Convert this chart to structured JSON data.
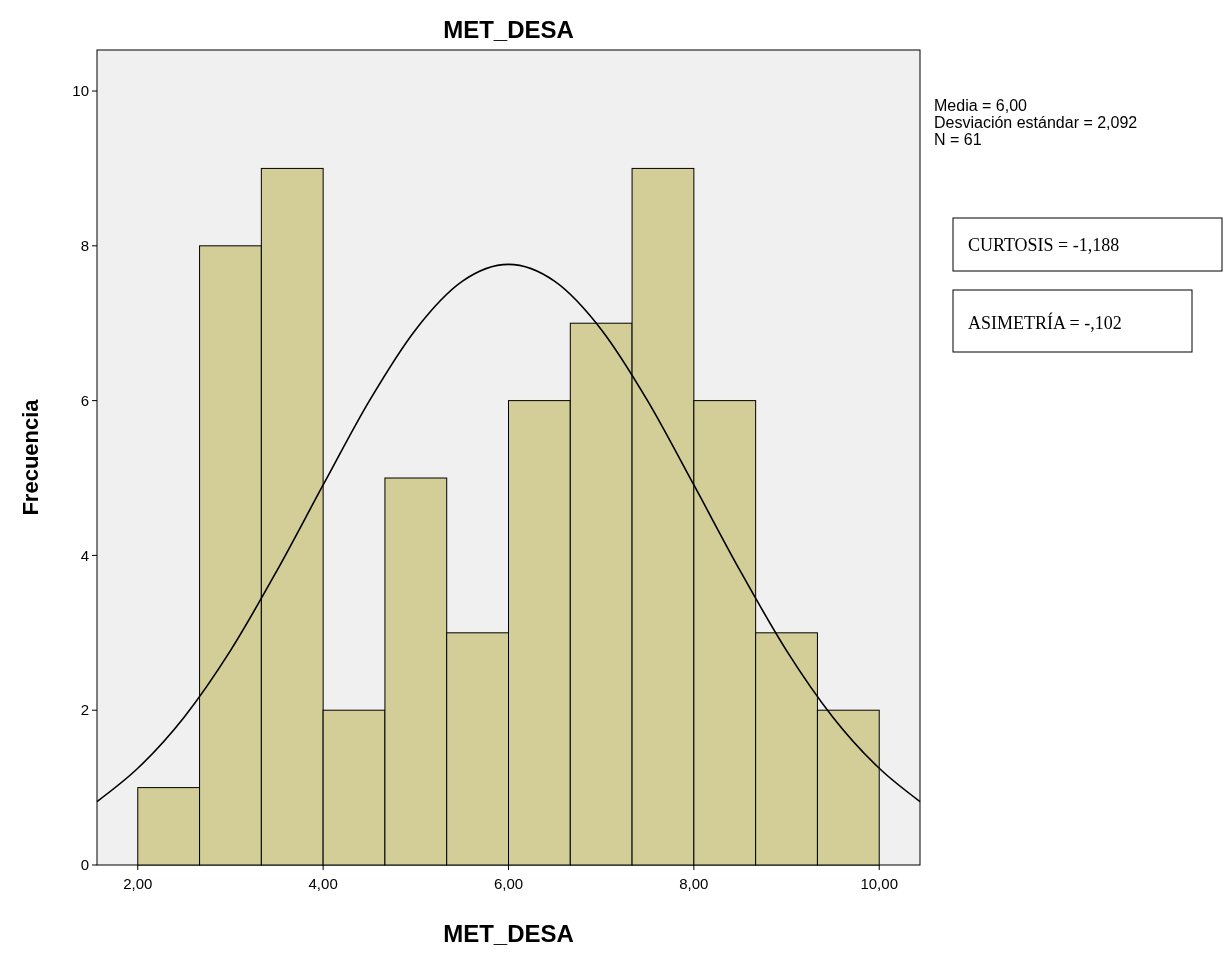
{
  "chart_data": {
    "type": "histogram",
    "title": "MET_DESA",
    "xlabel": "MET_DESA",
    "ylabel": "Frecuencia",
    "bins": [
      2,
      2.6667,
      3.3333,
      4,
      4.6667,
      5.3333,
      6,
      6.6667,
      7.3333,
      8,
      8.6667,
      9.3333,
      10
    ],
    "values": [
      1,
      8,
      9,
      2,
      5,
      3,
      6,
      7,
      9,
      6,
      3,
      2
    ],
    "color": "#d3ce98",
    "series": [
      {
        "type": "line",
        "color": "#000000",
        "x": [
          1.56,
          2,
          2.5,
          3,
          3.5,
          4,
          4.5,
          5,
          5.5,
          6,
          6.5,
          7,
          7.5,
          8,
          8.5,
          9,
          9.5,
          10,
          10.44
        ],
        "values": [
          0.82,
          1.25,
          1.91,
          2.77,
          3.8,
          4.91,
          6.0,
          6.92,
          7.54,
          7.76,
          7.54,
          6.92,
          6.0,
          4.91,
          3.8,
          2.77,
          1.91,
          1.25,
          0.82
        ]
      }
    ],
    "xlim": [
      1.56,
      10.44
    ],
    "ylim": [
      0,
      10.53
    ],
    "xticks": [
      {
        "value": 2,
        "label": "2,00"
      },
      {
        "value": 4,
        "label": "4,00"
      },
      {
        "value": 6,
        "label": "6,00"
      },
      {
        "value": 8,
        "label": "8,00"
      },
      {
        "value": 10,
        "label": "10,00"
      }
    ],
    "yticks": [
      0,
      2,
      4,
      6,
      8,
      10
    ],
    "grid": false,
    "annotations": [
      "Media = 6,00",
      "Desviación estándar = 2,092",
      "N = 61",
      "CURTOSIS = -1,188",
      "ASIMETRÍA = -,102"
    ]
  }
}
